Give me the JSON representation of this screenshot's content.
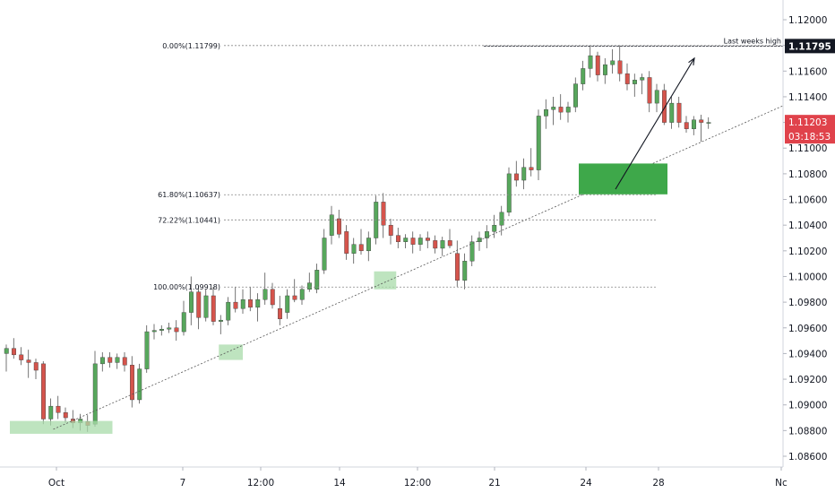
{
  "chart_data": {
    "type": "candlestick",
    "title": "",
    "xlabel": "",
    "ylabel": "",
    "ylim": [
      1.0845,
      1.122
    ],
    "y_ticks": [
      1.086,
      1.088,
      1.09,
      1.092,
      1.094,
      1.096,
      1.098,
      1.1,
      1.102,
      1.104,
      1.106,
      1.108,
      1.11,
      1.112,
      1.114,
      1.116,
      1.118,
      1.12
    ],
    "y_tick_labels": [
      "1.08600",
      "1.08800",
      "1.09000",
      "1.09200",
      "1.09400",
      "1.09600",
      "1.09800",
      "1.10000",
      "1.10200",
      "1.10400",
      "1.10600",
      "1.10800",
      "1.11000",
      "1.11200",
      "1.11400",
      "1.11600",
      "1.11800",
      "1.12000"
    ],
    "x_ticks": [
      {
        "label": "Oct",
        "bar": 8
      },
      {
        "label": "7",
        "bar": 28
      },
      {
        "label": "12:00",
        "bar": 38
      },
      {
        "label": "14",
        "bar": 48
      },
      {
        "label": "12:00",
        "bar": 58
      },
      {
        "label": "21",
        "bar": 68
      },
      {
        "label": "24",
        "bar": 80
      },
      {
        "label": "28",
        "bar": 90
      },
      {
        "label": "Nc",
        "bar": 107
      }
    ],
    "grid": false,
    "colors": {
      "up": "#57a75c",
      "down": "#d5544c",
      "zone": "#a8dba9",
      "target": "#3ea84a",
      "price_label": "#e0424b",
      "last_high_label": "#131722"
    },
    "candles": [
      {
        "o": 1.094,
        "h": 1.0947,
        "l": 1.0926,
        "c": 1.0944
      },
      {
        "o": 1.0944,
        "h": 1.0952,
        "l": 1.0936,
        "c": 1.0939
      },
      {
        "o": 1.0939,
        "h": 1.0945,
        "l": 1.0931,
        "c": 1.0935
      },
      {
        "o": 1.0935,
        "h": 1.0943,
        "l": 1.0921,
        "c": 1.0933
      },
      {
        "o": 1.0933,
        "h": 1.0936,
        "l": 1.092,
        "c": 1.0927
      },
      {
        "o": 1.0932,
        "h": 1.0934,
        "l": 1.0885,
        "c": 1.0889
      },
      {
        "o": 1.0889,
        "h": 1.0905,
        "l": 1.0884,
        "c": 1.0899
      },
      {
        "o": 1.0899,
        "h": 1.0907,
        "l": 1.0889,
        "c": 1.0894
      },
      {
        "o": 1.0894,
        "h": 1.0898,
        "l": 1.0886,
        "c": 1.089
      },
      {
        "o": 1.0889,
        "h": 1.0896,
        "l": 1.0882,
        "c": 1.0886
      },
      {
        "o": 1.0886,
        "h": 1.0893,
        "l": 1.088,
        "c": 1.0889
      },
      {
        "o": 1.0887,
        "h": 1.0892,
        "l": 1.0879,
        "c": 1.0884
      },
      {
        "o": 1.0885,
        "h": 1.0942,
        "l": 1.0883,
        "c": 1.0932
      },
      {
        "o": 1.0932,
        "h": 1.0941,
        "l": 1.0926,
        "c": 1.0937
      },
      {
        "o": 1.0937,
        "h": 1.0941,
        "l": 1.0929,
        "c": 1.0933
      },
      {
        "o": 1.0933,
        "h": 1.094,
        "l": 1.0928,
        "c": 1.0937
      },
      {
        "o": 1.0937,
        "h": 1.0941,
        "l": 1.0926,
        "c": 1.0931
      },
      {
        "o": 1.0931,
        "h": 1.0938,
        "l": 1.0898,
        "c": 1.0904
      },
      {
        "o": 1.0904,
        "h": 1.0932,
        "l": 1.0901,
        "c": 1.0928
      },
      {
        "o": 1.0928,
        "h": 1.0962,
        "l": 1.0925,
        "c": 1.0957
      },
      {
        "o": 1.0957,
        "h": 1.0963,
        "l": 1.0951,
        "c": 1.0958
      },
      {
        "o": 1.0958,
        "h": 1.0962,
        "l": 1.0954,
        "c": 1.0959
      },
      {
        "o": 1.0959,
        "h": 1.0964,
        "l": 1.0956,
        "c": 1.096
      },
      {
        "o": 1.096,
        "h": 1.0966,
        "l": 1.095,
        "c": 1.0957
      },
      {
        "o": 1.0957,
        "h": 1.0981,
        "l": 1.0954,
        "c": 1.0972
      },
      {
        "o": 1.0972,
        "h": 1.1,
        "l": 1.0962,
        "c": 1.0988
      },
      {
        "o": 1.0988,
        "h": 1.0993,
        "l": 1.0959,
        "c": 1.0968
      },
      {
        "o": 1.0968,
        "h": 1.099,
        "l": 1.0965,
        "c": 1.0985
      },
      {
        "o": 1.0985,
        "h": 1.0992,
        "l": 1.0962,
        "c": 1.0965
      }
    ],
    "fib_levels": [
      {
        "label": "0.00%(1.11799)",
        "value": 1.11799
      },
      {
        "label": "61.80%(1.10637)",
        "value": 1.10637
      },
      {
        "label": "72.22%(1.10441)",
        "value": 1.10441
      },
      {
        "label": "100.00%(1.09918)",
        "value": 1.09918
      }
    ],
    "annotations": {
      "last_weeks_high_text": "Last weeks high",
      "last_weeks_high_price": "1.11795",
      "last_price": "1.11203",
      "countdown": "03:18:53"
    }
  }
}
